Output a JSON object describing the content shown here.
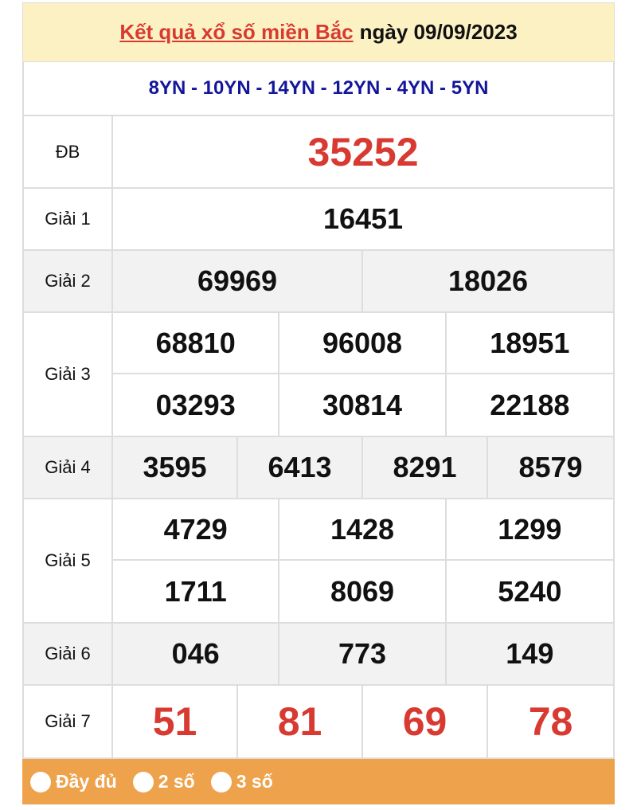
{
  "header": {
    "title_link": "Kết quả xổ số miền Bắc",
    "date_text": "ngày 09/09/2023"
  },
  "codes": "8YN - 10YN - 14YN - 12YN - 4YN - 5YN",
  "prizes": [
    {
      "label": "ĐB",
      "numbers": [
        "35252"
      ],
      "cols": 1,
      "height": 91,
      "red": true,
      "size": 50
    },
    {
      "label": "Giải 1",
      "numbers": [
        "16451"
      ],
      "cols": 1,
      "height": 78
    },
    {
      "label": "Giải 2",
      "numbers": [
        "69969",
        "18026"
      ],
      "cols": 2,
      "height": 78,
      "gray": true
    },
    {
      "label": "Giải 3",
      "numbers": [
        "68810",
        "96008",
        "18951",
        "03293",
        "30814",
        "22188"
      ],
      "cols": 3,
      "height": 156
    },
    {
      "label": "Giải 4",
      "numbers": [
        "3595",
        "6413",
        "8291",
        "8579"
      ],
      "cols": 4,
      "height": 78,
      "gray": true
    },
    {
      "label": "Giải 5",
      "numbers": [
        "4729",
        "1428",
        "1299",
        "1711",
        "8069",
        "5240"
      ],
      "cols": 3,
      "height": 156
    },
    {
      "label": "Giải 6",
      "numbers": [
        "046",
        "773",
        "149"
      ],
      "cols": 3,
      "height": 78,
      "gray": true
    },
    {
      "label": "Giải 7",
      "numbers": [
        "51",
        "81",
        "69",
        "78"
      ],
      "cols": 4,
      "height": 92,
      "red": true,
      "size": 50
    }
  ],
  "options": [
    "Đầy đủ",
    "2 số",
    "3 số"
  ],
  "colors": {
    "accent_red": "#d83a32",
    "code_blue": "#13169a",
    "header_bg": "#fbf1c3",
    "options_bg": "#eea24b"
  }
}
